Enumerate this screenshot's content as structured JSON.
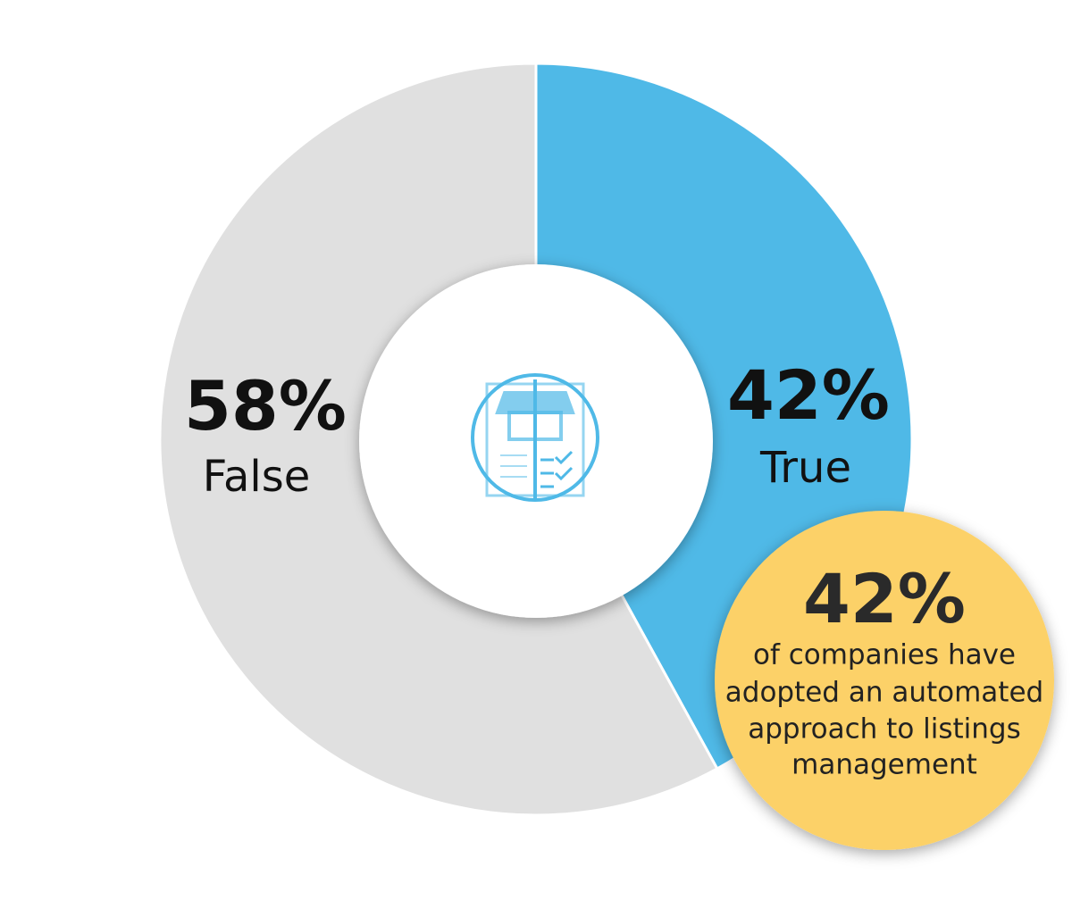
{
  "chart_data": {
    "type": "pie",
    "categories": [
      "True",
      "False"
    ],
    "values": [
      42,
      58
    ],
    "value_labels": [
      "42%",
      "58%"
    ],
    "colors": [
      "#4fb9e7",
      "#e0e0e0"
    ],
    "callout": {
      "title": "42%",
      "lines": [
        "of companies have",
        "adopted an automated",
        "approach to listings",
        "management"
      ]
    }
  }
}
